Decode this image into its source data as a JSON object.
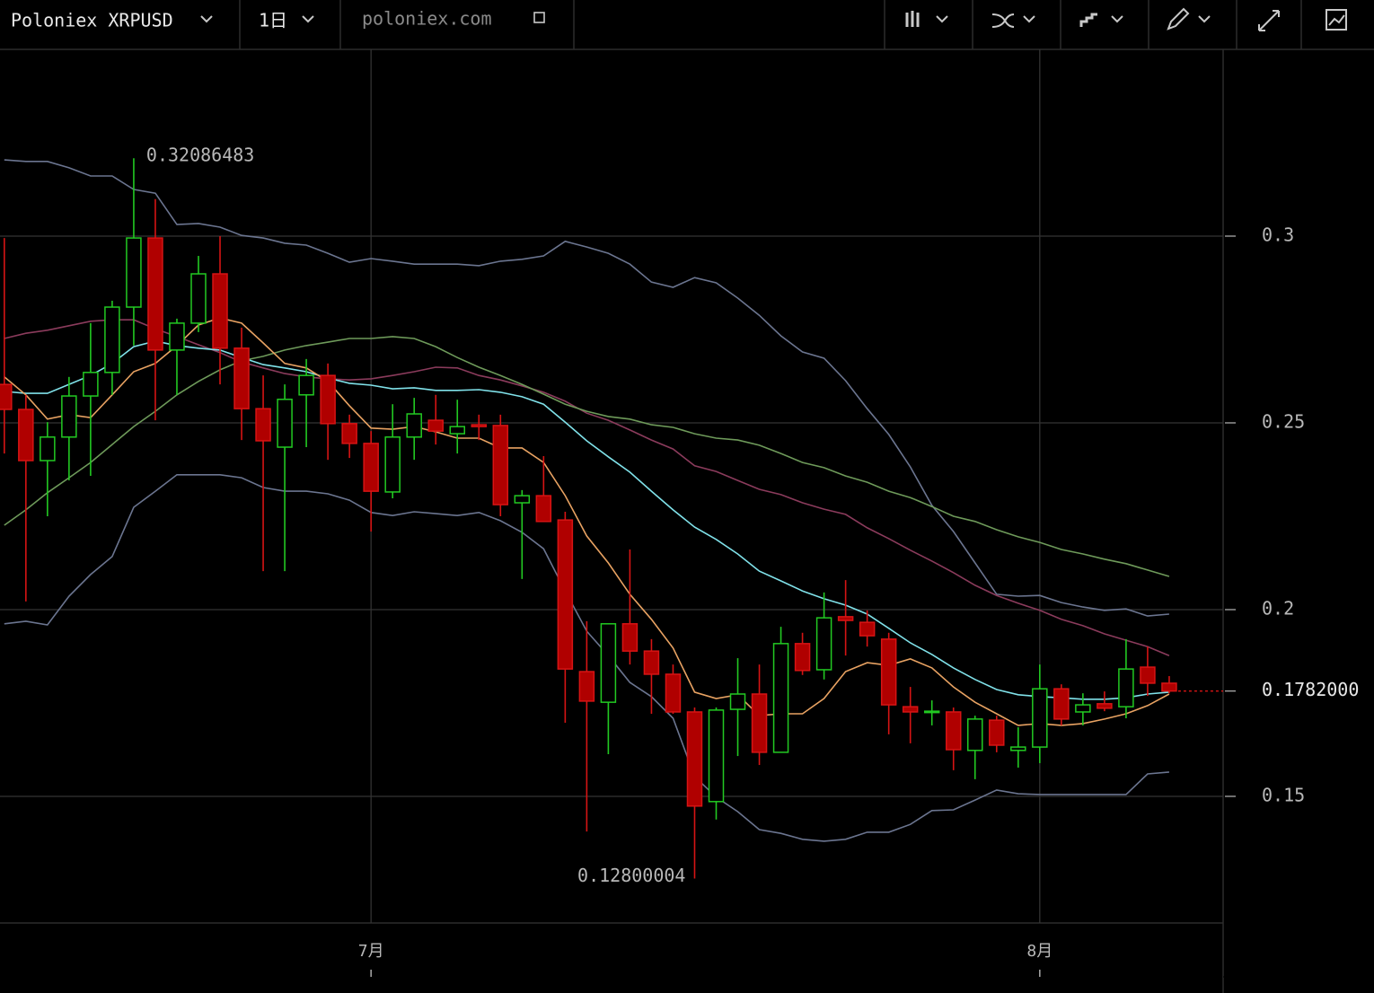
{
  "toolbar": {
    "symbol": "Poloniex XRPUSD",
    "interval": "1日",
    "source": "poloniex.com"
  },
  "chart_data": {
    "type": "candlestick",
    "x": [
      0,
      1,
      2,
      3,
      4,
      5,
      6,
      7,
      8,
      9,
      10,
      11,
      12,
      13,
      14,
      15,
      16,
      17,
      18,
      19,
      20,
      21,
      22,
      23,
      24,
      25,
      26,
      27,
      28,
      29,
      30,
      31,
      32,
      33,
      34,
      35,
      36,
      37,
      38,
      39,
      40,
      41,
      42,
      43,
      44,
      45,
      46,
      47,
      48,
      49,
      50,
      51,
      52,
      53,
      54
    ],
    "open": [
      0.2603,
      0.2536,
      0.2399,
      0.2462,
      0.2572,
      0.2635,
      0.281,
      0.2995,
      0.2695,
      0.2767,
      0.2899,
      0.27,
      0.2538,
      0.2435,
      0.2575,
      0.2627,
      0.2498,
      0.2445,
      0.2315,
      0.2462,
      0.2507,
      0.2471,
      0.2495,
      0.2493,
      0.2286,
      0.2305,
      0.224,
      0.1834,
      0.1752,
      0.1962,
      0.1889,
      0.1827,
      0.1726,
      0.1486,
      0.1733,
      0.1774,
      0.1618,
      0.1909,
      0.1839,
      0.1981,
      0.1966,
      0.1921,
      0.174,
      0.1726,
      0.1726,
      0.1623,
      0.1704,
      0.1623,
      0.1632,
      0.1788,
      0.1726,
      0.1748,
      0.174,
      0.1846,
      0.1803
    ],
    "high": [
      0.2995,
      0.2575,
      0.2502,
      0.2623,
      0.2767,
      0.2827,
      0.32086483,
      0.3099,
      0.2779,
      0.2947,
      0.3,
      0.2755,
      0.2627,
      0.2603,
      0.2671,
      0.2659,
      0.2522,
      0.2478,
      0.255,
      0.2567,
      0.2575,
      0.2562,
      0.2522,
      0.2522,
      0.232,
      0.2411,
      0.2262,
      0.1969,
      0.1962,
      0.2161,
      0.1921,
      0.1853,
      0.1738,
      0.1738,
      0.187,
      0.1853,
      0.1954,
      0.1938,
      0.2046,
      0.2079,
      0.1998,
      0.1938,
      0.1793,
      0.1757,
      0.1738,
      0.1716,
      0.1716,
      0.1685,
      0.1853,
      0.18,
      0.1776,
      0.1781,
      0.1921,
      0.1901,
      0.1822
    ],
    "low": [
      0.2418,
      0.2022,
      0.225,
      0.2346,
      0.2358,
      0.2575,
      0.2707,
      0.2507,
      0.2575,
      0.2743,
      0.2603,
      0.2454,
      0.2103,
      0.2103,
      0.2435,
      0.2401,
      0.2406,
      0.2209,
      0.2298,
      0.2401,
      0.2442,
      0.2418,
      0.2454,
      0.225,
      0.2082,
      0.2236,
      0.1697,
      0.1406,
      0.1613,
      0.1853,
      0.1721,
      0.1721,
      0.12800004,
      0.1438,
      0.1608,
      0.1584,
      0.1618,
      0.1825,
      0.1813,
      0.1877,
      0.1901,
      0.1666,
      0.1642,
      0.169,
      0.157,
      0.1546,
      0.1618,
      0.1577,
      0.1589,
      0.169,
      0.169,
      0.1728,
      0.1709,
      0.1769,
      0.1776
    ],
    "close": [
      0.2536,
      0.2399,
      0.2462,
      0.2572,
      0.2635,
      0.281,
      0.2995,
      0.2695,
      0.2767,
      0.2899,
      0.27,
      0.2538,
      0.2452,
      0.2563,
      0.2627,
      0.2498,
      0.2445,
      0.2317,
      0.2462,
      0.2524,
      0.2478,
      0.249,
      0.249,
      0.2281,
      0.2305,
      0.2236,
      0.1841,
      0.1755,
      0.1962,
      0.1889,
      0.1827,
      0.1726,
      0.1474,
      0.1731,
      0.1774,
      0.1618,
      0.1909,
      0.1837,
      0.1978,
      0.1971,
      0.193,
      0.1745,
      0.1726,
      0.1728,
      0.1625,
      0.1707,
      0.1637,
      0.1632,
      0.1788,
      0.1707,
      0.1745,
      0.1736,
      0.1841,
      0.1803,
      0.1782
    ],
    "up_color": "#22c922",
    "down_color": "#d61414",
    "down_fill": "#b00000",
    "lines": [
      {
        "color": "#6b7590",
        "values": [
          0.3204,
          0.32,
          0.32,
          0.3183,
          0.3161,
          0.3161,
          0.3125,
          0.3115,
          0.3031,
          0.3034,
          0.3024,
          0.3002,
          0.2995,
          0.2981,
          0.2976,
          0.2954,
          0.293,
          0.294,
          0.2933,
          0.2925,
          0.2925,
          0.2925,
          0.2921,
          0.2933,
          0.2938,
          0.2947,
          0.2986,
          0.2971,
          0.2954,
          0.2925,
          0.2877,
          0.2863,
          0.2889,
          0.2875,
          0.2834,
          0.2788,
          0.2733,
          0.269,
          0.2673,
          0.2613,
          0.2538,
          0.2469,
          0.2382,
          0.2279,
          0.2209,
          0.2125,
          0.2041,
          0.2036,
          0.2038,
          0.2019,
          0.2007,
          0.1998,
          0.2002,
          0.1983,
          0.1988
        ]
      },
      {
        "color": "#6b7590",
        "values": [
          0.1962,
          0.1969,
          0.1959,
          0.2036,
          0.2094,
          0.2142,
          0.2274,
          0.2317,
          0.2361,
          0.2361,
          0.2361,
          0.2353,
          0.2327,
          0.2317,
          0.2317,
          0.231,
          0.2293,
          0.226,
          0.2252,
          0.2262,
          0.2257,
          0.2252,
          0.226,
          0.2238,
          0.2207,
          0.2163,
          0.205,
          0.1942,
          0.1877,
          0.1805,
          0.1767,
          0.1709,
          0.1553,
          0.1498,
          0.1459,
          0.1411,
          0.1401,
          0.1385,
          0.138,
          0.1385,
          0.1404,
          0.1404,
          0.1425,
          0.1462,
          0.1464,
          0.149,
          0.1517,
          0.1507,
          0.1505,
          0.1505,
          0.1505,
          0.1505,
          0.1505,
          0.156,
          0.1565
        ]
      },
      {
        "color": "#8b3b5c",
        "values": [
          0.2726,
          0.274,
          0.2748,
          0.276,
          0.2772,
          0.2776,
          0.2776,
          0.2752,
          0.2731,
          0.2709,
          0.2688,
          0.2663,
          0.2647,
          0.2632,
          0.2623,
          0.2618,
          0.2615,
          0.2618,
          0.2627,
          0.2637,
          0.2649,
          0.2647,
          0.2627,
          0.2615,
          0.2599,
          0.2582,
          0.2558,
          0.2526,
          0.2507,
          0.2481,
          0.2454,
          0.243,
          0.2385,
          0.237,
          0.2346,
          0.2322,
          0.2308,
          0.2286,
          0.2269,
          0.2255,
          0.2219,
          0.219,
          0.2159,
          0.213,
          0.2099,
          0.2065,
          0.2038,
          0.2017,
          0.1998,
          0.1974,
          0.1957,
          0.1935,
          0.1918,
          0.1901,
          0.1877
        ]
      },
      {
        "color": "#6e9a5a",
        "values": [
          0.2226,
          0.2267,
          0.2313,
          0.2353,
          0.2394,
          0.2442,
          0.249,
          0.2531,
          0.2575,
          0.2611,
          0.2642,
          0.2666,
          0.2678,
          0.2695,
          0.2707,
          0.2716,
          0.2726,
          0.2726,
          0.2731,
          0.2726,
          0.2704,
          0.2675,
          0.2649,
          0.2627,
          0.2603,
          0.2577,
          0.255,
          0.2531,
          0.2517,
          0.251,
          0.2495,
          0.2488,
          0.2471,
          0.2459,
          0.2454,
          0.244,
          0.2418,
          0.2394,
          0.238,
          0.2358,
          0.2341,
          0.2317,
          0.23,
          0.2276,
          0.225,
          0.2236,
          0.2214,
          0.2195,
          0.218,
          0.2161,
          0.2149,
          0.2135,
          0.2123,
          0.2106,
          0.2089
        ]
      },
      {
        "color": "#80e2ea",
        "values": [
          0.2584,
          0.2579,
          0.2579,
          0.2603,
          0.2627,
          0.2659,
          0.2704,
          0.2719,
          0.2707,
          0.27,
          0.2695,
          0.2675,
          0.2656,
          0.2647,
          0.2637,
          0.262,
          0.2606,
          0.2601,
          0.2591,
          0.2594,
          0.2587,
          0.2587,
          0.2589,
          0.2582,
          0.257,
          0.255,
          0.2502,
          0.2452,
          0.2409,
          0.2368,
          0.2317,
          0.2267,
          0.2221,
          0.2188,
          0.2149,
          0.2103,
          0.2077,
          0.205,
          0.2029,
          0.2012,
          0.1988,
          0.195,
          0.1911,
          0.188,
          0.1844,
          0.1813,
          0.1786,
          0.1772,
          0.1767,
          0.1764,
          0.176,
          0.176,
          0.1764,
          0.1774,
          0.1779
        ]
      },
      {
        "color": "#e8a262",
        "values": [
          0.2623,
          0.2575,
          0.251,
          0.2522,
          0.2514,
          0.2575,
          0.2637,
          0.2659,
          0.2707,
          0.2762,
          0.2781,
          0.2767,
          0.2714,
          0.2659,
          0.2647,
          0.2611,
          0.2546,
          0.2486,
          0.2483,
          0.249,
          0.2476,
          0.2459,
          0.2459,
          0.2433,
          0.2433,
          0.2394,
          0.2305,
          0.2197,
          0.2125,
          0.2041,
          0.1974,
          0.1897,
          0.1779,
          0.1762,
          0.1772,
          0.1716,
          0.1721,
          0.1721,
          0.1762,
          0.1834,
          0.1858,
          0.1851,
          0.1868,
          0.1844,
          0.1793,
          0.1752,
          0.1721,
          0.169,
          0.1695,
          0.169,
          0.1695,
          0.1707,
          0.1721,
          0.1743,
          0.1774
        ]
      }
    ],
    "last_price": {
      "value": 0.1782,
      "label": "0.1782000"
    },
    "xlim": [
      -0.2,
      56.5
    ],
    "xticks": [
      {
        "value": 17,
        "label": "7月"
      },
      {
        "value": 48,
        "label": "8月"
      }
    ],
    "ylim": [
      0.1161,
      0.35
    ],
    "yticks": [
      0.15,
      0.2,
      0.25,
      0.3
    ],
    "grid": true
  }
}
